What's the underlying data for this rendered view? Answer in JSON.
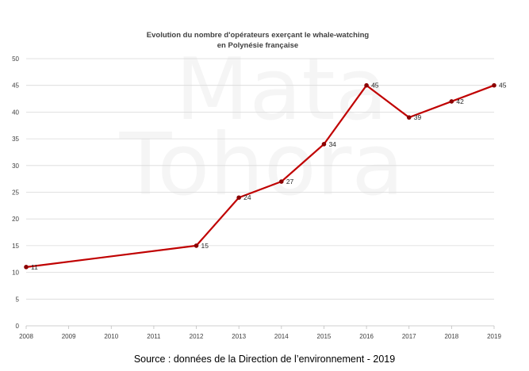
{
  "chart_data": {
    "type": "line",
    "title_lines": [
      "Evolution du nombre d'opérateurs exerçant le whale-watching",
      "en Polynésie française"
    ],
    "x": [
      "2008",
      "2009",
      "2010",
      "2011",
      "2012",
      "2013",
      "2014",
      "2015",
      "2016",
      "2017",
      "2018",
      "2019"
    ],
    "series": [
      {
        "points": [
          {
            "x": "2008",
            "y": 11,
            "label": "11"
          },
          {
            "x": "2012",
            "y": 15,
            "label": "15"
          },
          {
            "x": "2013",
            "y": 24,
            "label": "24"
          },
          {
            "x": "2014",
            "y": 27,
            "label": "27"
          },
          {
            "x": "2015",
            "y": 34,
            "label": "34"
          },
          {
            "x": "2016",
            "y": 45,
            "label": "45"
          },
          {
            "x": "2017",
            "y": 39,
            "label": "39"
          },
          {
            "x": "2018",
            "y": 42,
            "label": "42"
          },
          {
            "x": "2019",
            "y": 45,
            "label": "45"
          }
        ]
      }
    ],
    "ylim": [
      0,
      50
    ],
    "yticks": [
      0,
      5,
      10,
      15,
      20,
      25,
      30,
      35,
      40,
      45,
      50
    ],
    "grid": "horizontal",
    "line_color": "#c00000",
    "marker_color": "#8b0000"
  },
  "watermark": {
    "line1": "Mata",
    "line2": "Tohora"
  },
  "source_text": "Source : données de la Direction de l’environnement - 2019"
}
